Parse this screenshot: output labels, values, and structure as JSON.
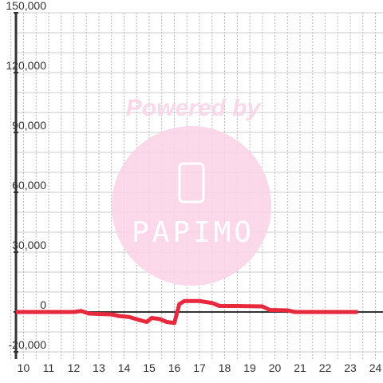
{
  "chart_data": {
    "type": "line",
    "x": [
      9.7,
      12.0,
      12.3,
      12.6,
      13.0,
      13.5,
      13.8,
      14.2,
      14.6,
      14.9,
      15.1,
      15.4,
      15.7,
      16.0,
      16.2,
      16.4,
      17.0,
      17.5,
      17.8,
      18.5,
      19.5,
      19.8,
      20.5,
      20.8,
      23.3
    ],
    "series": [
      {
        "color": "#e8283c",
        "values": [
          0,
          0,
          500,
          -800,
          -1000,
          -1200,
          -2000,
          -2500,
          -4000,
          -5000,
          -3000,
          -3500,
          -5000,
          -5500,
          4000,
          5500,
          5500,
          4500,
          3000,
          3000,
          2800,
          1000,
          800,
          0,
          0
        ]
      }
    ],
    "xlim": [
      9.7,
      24.3
    ],
    "xticks": [
      10,
      11,
      12,
      13,
      14,
      15,
      16,
      17,
      18,
      19,
      20,
      21,
      22,
      23,
      24
    ],
    "xminor_ticks": [
      9.5,
      10.5,
      11.5,
      12.5,
      13.5,
      14.5,
      15.5,
      16.5,
      17.5,
      18.5,
      19.5,
      20.5,
      21.5,
      22.5,
      23.5
    ],
    "ylim": [
      -20000,
      150000
    ],
    "yticks": [
      {
        "value": -20000,
        "label": "-20,000"
      },
      0,
      {
        "value": 30000,
        "label": "30,000"
      },
      {
        "value": 60000,
        "label": "60,000"
      },
      {
        "value": 90000,
        "label": "90,000"
      },
      {
        "value": 120000,
        "label": "120,000"
      },
      {
        "value": 150000,
        "label": "150,000"
      }
    ],
    "yminor_ticks": [
      -10000,
      10000,
      20000,
      40000,
      50000,
      70000,
      80000,
      100000,
      110000,
      130000,
      140000
    ],
    "grid": true
  },
  "watermark": {
    "text": "Powered by",
    "logo": "PAPIMO"
  }
}
